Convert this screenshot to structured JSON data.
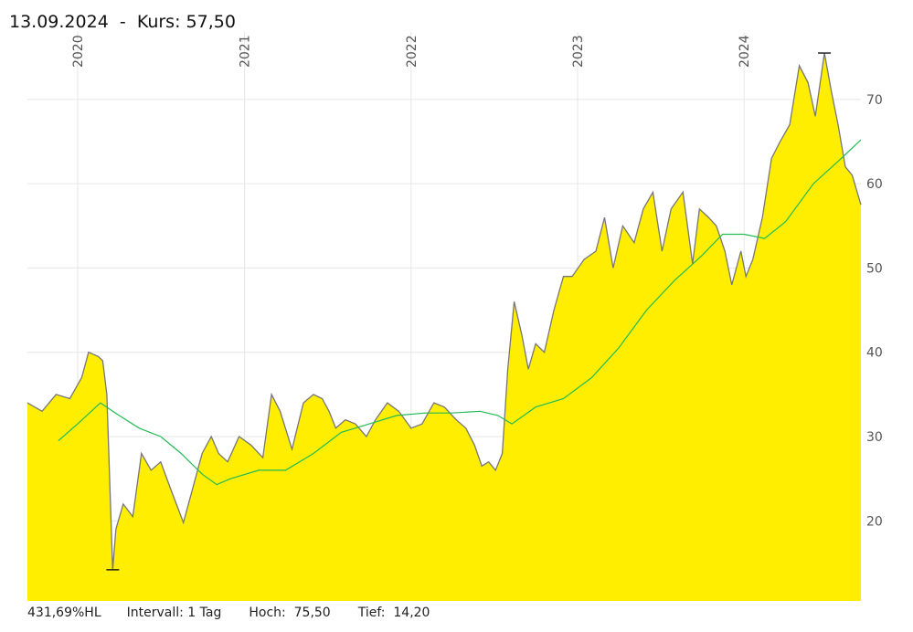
{
  "header": {
    "date": "13.09.2024",
    "separator": "  -  ",
    "price_label": "Kurs: 57,50"
  },
  "footer": {
    "perf": "431,69%HL",
    "interval": "Intervall: 1 Tag",
    "high": "Hoch:  75,50",
    "low": "Tief:  14,20"
  },
  "colors": {
    "fill": "#ffee00",
    "line": "#777777",
    "moving_average": "#22bb55",
    "grid": "#e6e6e6"
  },
  "chart_data": {
    "type": "area",
    "title": "",
    "xlabel": "",
    "ylabel": "",
    "x_start": "2019-09-13",
    "x_end": "2024-09-13",
    "ylim": [
      10.5,
      78
    ],
    "x_ticks": [
      "2020",
      "2021",
      "2022",
      "2023",
      "2024"
    ],
    "y_ticks": [
      20,
      30,
      40,
      50,
      60,
      70
    ],
    "grid": true,
    "series": [
      {
        "kind": "price",
        "x": [
          "2019-09-13",
          "2019-10-15",
          "2019-11-15",
          "2019-12-15",
          "2020-01-10",
          "2020-01-25",
          "2020-02-15",
          "2020-02-25",
          "2020-03-05",
          "2020-03-18",
          "2020-03-25",
          "2020-04-10",
          "2020-05-01",
          "2020-05-20",
          "2020-06-10",
          "2020-07-01",
          "2020-07-25",
          "2020-08-20",
          "2020-09-10",
          "2020-09-30",
          "2020-10-20",
          "2020-11-05",
          "2020-11-25",
          "2020-12-20",
          "2021-01-15",
          "2021-02-10",
          "2021-03-01",
          "2021-03-20",
          "2021-04-15",
          "2021-05-10",
          "2021-06-01",
          "2021-06-20",
          "2021-07-05",
          "2021-07-20",
          "2021-08-10",
          "2021-09-01",
          "2021-09-25",
          "2021-10-15",
          "2021-11-10",
          "2021-12-05",
          "2022-01-01",
          "2022-01-25",
          "2022-02-20",
          "2022-03-15",
          "2022-04-10",
          "2022-05-01",
          "2022-05-20",
          "2022-06-05",
          "2022-06-20",
          "2022-07-05",
          "2022-07-20",
          "2022-08-01",
          "2022-08-15",
          "2022-09-01",
          "2022-09-15",
          "2022-10-01",
          "2022-10-20",
          "2022-11-10",
          "2022-12-01",
          "2022-12-20",
          "2023-01-15",
          "2023-02-10",
          "2023-03-01",
          "2023-03-20",
          "2023-04-10",
          "2023-05-05",
          "2023-05-25",
          "2023-06-15",
          "2023-07-05",
          "2023-07-25",
          "2023-08-20",
          "2023-09-10",
          "2023-09-25",
          "2023-10-15",
          "2023-11-01",
          "2023-11-20",
          "2023-12-05",
          "2023-12-25",
          "2024-01-05",
          "2024-01-20",
          "2024-02-10",
          "2024-03-01",
          "2024-03-20",
          "2024-04-10",
          "2024-05-01",
          "2024-05-20",
          "2024-06-05",
          "2024-06-25",
          "2024-07-10",
          "2024-07-25",
          "2024-08-10",
          "2024-08-25",
          "2024-09-13"
        ],
        "values": [
          34,
          33,
          35,
          34.5,
          37,
          40,
          39.5,
          39,
          35,
          14.2,
          19,
          22,
          20.5,
          28,
          26,
          27,
          23.5,
          19.8,
          24,
          28,
          30,
          28,
          27,
          30,
          29,
          27.5,
          35,
          33,
          28.5,
          34,
          35,
          34.5,
          33,
          31,
          32,
          31.5,
          30,
          32,
          34,
          33,
          31,
          31.5,
          34,
          33.5,
          32,
          31,
          29,
          26.5,
          27,
          26,
          28,
          38,
          46,
          42,
          38,
          41,
          40,
          45,
          49,
          49,
          51,
          52,
          56,
          50,
          55,
          53,
          57,
          59,
          52,
          57,
          59,
          50.5,
          57,
          56,
          55,
          52,
          48,
          52,
          49,
          51,
          56,
          63,
          65,
          67,
          74,
          72,
          68,
          75.5,
          71,
          67,
          62,
          61,
          57.5
        ]
      },
      {
        "kind": "moving_average",
        "x": [
          "2019-11-20",
          "2020-01-01",
          "2020-02-20",
          "2020-04-01",
          "2020-05-15",
          "2020-07-01",
          "2020-08-15",
          "2020-10-01",
          "2020-11-01",
          "2020-12-01",
          "2021-02-01",
          "2021-04-01",
          "2021-06-01",
          "2021-08-01",
          "2021-10-01",
          "2021-12-01",
          "2022-02-01",
          "2022-04-01",
          "2022-06-01",
          "2022-07-10",
          "2022-08-10",
          "2022-10-01",
          "2022-12-01",
          "2023-02-01",
          "2023-04-01",
          "2023-06-01",
          "2023-08-01",
          "2023-10-01",
          "2023-11-15",
          "2024-01-01",
          "2024-02-15",
          "2024-04-01",
          "2024-06-01",
          "2024-08-01",
          "2024-09-13"
        ],
        "values": [
          29.5,
          31.5,
          34,
          32.5,
          31,
          30,
          28,
          25.5,
          24.3,
          25,
          26,
          26,
          28,
          30.5,
          31.5,
          32.5,
          32.8,
          32.8,
          33,
          32.5,
          31.5,
          33.5,
          34.5,
          37,
          40.5,
          45,
          48.5,
          51.5,
          54,
          54,
          53.5,
          55.5,
          60,
          63,
          65.2
        ]
      }
    ]
  }
}
